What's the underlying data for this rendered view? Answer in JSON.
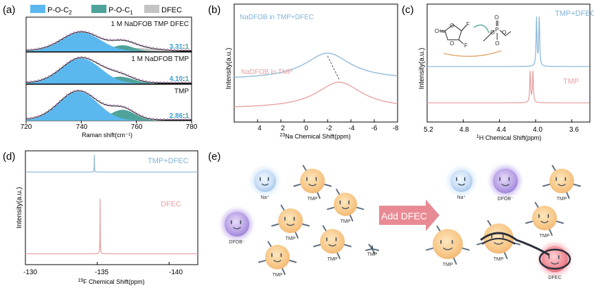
{
  "colors": {
    "blue": "#5bb8ee",
    "teal": "#4fa39a",
    "gray": "#c4c4c4",
    "blueLine": "#8fbad8",
    "pinkLine": "#e8a2a2",
    "blueText": "#7fb3d8",
    "pinkText": "#e8a0a0",
    "ratioBlue": "#3a9fd0",
    "arrowPink": "#e88a94"
  },
  "chart_data": [
    {
      "panel": "(a)",
      "type": "area",
      "xlabel": "Raman shift(cm⁻¹)",
      "xlim": [
        720,
        780
      ],
      "xticks": [
        "720",
        "740",
        "760",
        "780"
      ],
      "legend": [
        "P-O-C2",
        "P-O-C1",
        "DFEC"
      ],
      "subplots": [
        {
          "label": "1 M NaDFOB TMP DFEC",
          "ratio_a": "3.31",
          "ratio_b": "1",
          "peaks": [
            {
              "component": "P-O-C2",
              "center": 740,
              "height": 0.55,
              "width": 7
            },
            {
              "component": "P-O-C1",
              "center": 755,
              "height": 0.18,
              "width": 4
            },
            {
              "component": "DFEC",
              "center": 760,
              "height": 0.1,
              "width": 6
            }
          ]
        },
        {
          "label": "1 M NaDFOB TMP",
          "ratio_a": "4.10",
          "ratio_b": "1",
          "peaks": [
            {
              "component": "P-O-C2",
              "center": 740,
              "height": 0.8,
              "width": 7
            },
            {
              "component": "P-O-C1",
              "center": 754,
              "height": 0.22,
              "width": 5
            }
          ]
        },
        {
          "label": "TMP",
          "ratio_a": "2.86",
          "ratio_b": "1",
          "peaks": [
            {
              "component": "P-O-C2",
              "center": 739,
              "height": 0.8,
              "width": 7
            },
            {
              "component": "P-O-C1",
              "center": 755,
              "height": 0.3,
              "width": 4.5
            }
          ]
        }
      ]
    },
    {
      "panel": "(b)",
      "type": "line",
      "xlabel": "23Na Chemical Shift(ppm)",
      "ylabel": "Intensity(a.u.)",
      "xlim": [
        6,
        -8
      ],
      "xticks": [
        "4",
        "2",
        "0",
        "-2",
        "-4",
        "-6",
        "-8"
      ],
      "series": [
        {
          "name": "NaDFOB in TMP+DFEC",
          "peak": -2.0,
          "width": 2.4,
          "height": 1.0,
          "offset": 0.5
        },
        {
          "name": "NaDFOB in TMP",
          "peak": -3.0,
          "width": 2.4,
          "height": 1.0,
          "offset": 0.0
        }
      ]
    },
    {
      "panel": "(c)",
      "type": "line",
      "xlabel": "1H Chemical Shift(ppm)",
      "ylabel": "Intensity(a.u.)",
      "xlim": [
        5.2,
        3.4
      ],
      "xticks": [
        "5.2",
        "4.8",
        "4.4",
        "4.0",
        "3.6"
      ],
      "series": [
        {
          "name": "TMP+DFEC",
          "peaks": [
            3.99,
            3.96
          ]
        },
        {
          "name": "TMP",
          "peaks": [
            4.06,
            4.03
          ]
        }
      ],
      "annotation_atoms": [
        "O",
        "O",
        "O",
        "F",
        "F",
        "O",
        "O",
        "P",
        "O",
        "O"
      ]
    },
    {
      "panel": "(d)",
      "type": "line",
      "xlabel": "19F Chemical Shift(ppm)",
      "ylabel": "Intensity(a.u.)",
      "xlim": [
        -130,
        -142
      ],
      "xticks": [
        "-130",
        "-135",
        "-140"
      ],
      "series": [
        {
          "name": "TMP+DFEC",
          "peak": -134.8
        },
        {
          "name": "DFEC",
          "peak": -135.2
        }
      ]
    }
  ],
  "panel_e": {
    "label": "(e)",
    "arrow_text": "Add DFEC",
    "left_labels": [
      "Na⁺",
      "TMP",
      "TMP",
      "TMP",
      "DFOB⁻",
      "TMP",
      "TMP",
      "TMP"
    ],
    "right_labels": [
      "Na⁺",
      "DFOB⁻",
      "TMP",
      "DFEC"
    ]
  },
  "panel_labels": [
    "(a)",
    "(b)",
    "(c)",
    "(d)",
    "(e)"
  ]
}
